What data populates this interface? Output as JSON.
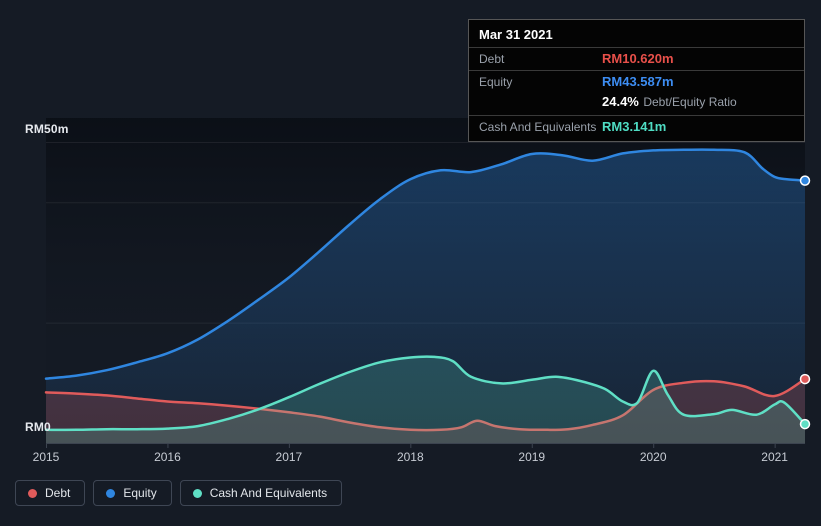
{
  "colors": {
    "background": "#151b25",
    "plot_top": "#0a0e15",
    "grid": "#2c3440",
    "axis": "#3c4450",
    "debt": "#e05b5b",
    "equity": "#2f86e0",
    "cash": "#5fdfc5",
    "tooltip_debt_value": "#e8504a",
    "tooltip_equity_value": "#3d8df2",
    "tooltip_cash_value": "#4fdcc3"
  },
  "tooltip": {
    "title": "Mar 31 2021",
    "debt_label": "Debt",
    "debt_value": "RM10.620m",
    "equity_label": "Equity",
    "equity_value": "RM43.587m",
    "ratio_value": "24.4%",
    "ratio_label": "Debt/Equity Ratio",
    "cash_label": "Cash And Equivalents",
    "cash_value": "RM3.141m"
  },
  "axis": {
    "y_top_label": "RM50m",
    "y_zero_label": "RM0"
  },
  "legend": [
    {
      "label": "Debt",
      "color": "#e05b5b"
    },
    {
      "label": "Equity",
      "color": "#2f86e0"
    },
    {
      "label": "Cash And Equivalents",
      "color": "#5fdfc5"
    }
  ],
  "chart_data": {
    "type": "area",
    "x_range": [
      2015,
      2021.25
    ],
    "x_ticks": [
      2015,
      2016,
      2017,
      2018,
      2019,
      2020,
      2021
    ],
    "ylim": [
      0,
      50
    ],
    "y_unit": "RM millions",
    "gridline_values": [
      50,
      40,
      20,
      0
    ],
    "legend_position": "bottom-left",
    "series": [
      {
        "name": "Debt",
        "color": "#e05b5b",
        "end_value": 10.62,
        "x": [
          2015.0,
          2015.25,
          2015.5,
          2015.75,
          2016.0,
          2016.25,
          2016.5,
          2016.75,
          2017.0,
          2017.25,
          2017.5,
          2017.75,
          2018.0,
          2018.25,
          2018.42,
          2018.55,
          2018.7,
          2018.9,
          2019.1,
          2019.3,
          2019.5,
          2019.75,
          2020.0,
          2020.25,
          2020.5,
          2020.75,
          2021.0,
          2021.25
        ],
        "values": [
          8.4,
          8.2,
          7.9,
          7.4,
          6.9,
          6.6,
          6.2,
          5.7,
          5.1,
          4.4,
          3.4,
          2.6,
          2.2,
          2.2,
          2.6,
          3.7,
          2.8,
          2.3,
          2.2,
          2.3,
          3.0,
          4.6,
          8.8,
          10.0,
          10.25,
          9.4,
          7.8,
          10.62
        ]
      },
      {
        "name": "Equity",
        "color": "#2f86e0",
        "end_value": 43.587,
        "x": [
          2015.0,
          2015.25,
          2015.5,
          2015.75,
          2016.0,
          2016.25,
          2016.5,
          2016.75,
          2017.0,
          2017.25,
          2017.5,
          2017.75,
          2018.0,
          2018.25,
          2018.5,
          2018.75,
          2019.0,
          2019.25,
          2019.5,
          2019.75,
          2020.0,
          2020.25,
          2020.5,
          2020.75,
          2020.9,
          2021.0,
          2021.1,
          2021.25
        ],
        "values": [
          10.7,
          11.2,
          12.1,
          13.4,
          14.9,
          17.2,
          20.3,
          23.8,
          27.5,
          31.8,
          36.3,
          40.5,
          43.8,
          45.3,
          45.0,
          46.3,
          48.0,
          47.8,
          46.9,
          48.1,
          48.6,
          48.7,
          48.7,
          48.3,
          45.6,
          44.2,
          43.8,
          43.587
        ]
      },
      {
        "name": "Cash And Equivalents",
        "color": "#5fdfc5",
        "end_value": 3.141,
        "x": [
          2015.0,
          2015.25,
          2015.5,
          2015.75,
          2016.0,
          2016.25,
          2016.5,
          2016.75,
          2017.0,
          2017.25,
          2017.5,
          2017.75,
          2018.0,
          2018.2,
          2018.35,
          2018.5,
          2018.75,
          2019.0,
          2019.2,
          2019.4,
          2019.6,
          2019.75,
          2019.87,
          2020.0,
          2020.12,
          2020.25,
          2020.5,
          2020.65,
          2020.85,
          2021.0,
          2021.08,
          2021.25
        ],
        "values": [
          2.2,
          2.2,
          2.3,
          2.3,
          2.4,
          2.8,
          4.0,
          5.6,
          7.6,
          9.8,
          11.8,
          13.4,
          14.2,
          14.3,
          13.6,
          11.0,
          9.9,
          10.5,
          11.0,
          10.3,
          9.0,
          6.9,
          6.7,
          12.0,
          8.0,
          4.7,
          4.8,
          5.5,
          4.7,
          6.4,
          6.7,
          3.141
        ]
      }
    ]
  }
}
